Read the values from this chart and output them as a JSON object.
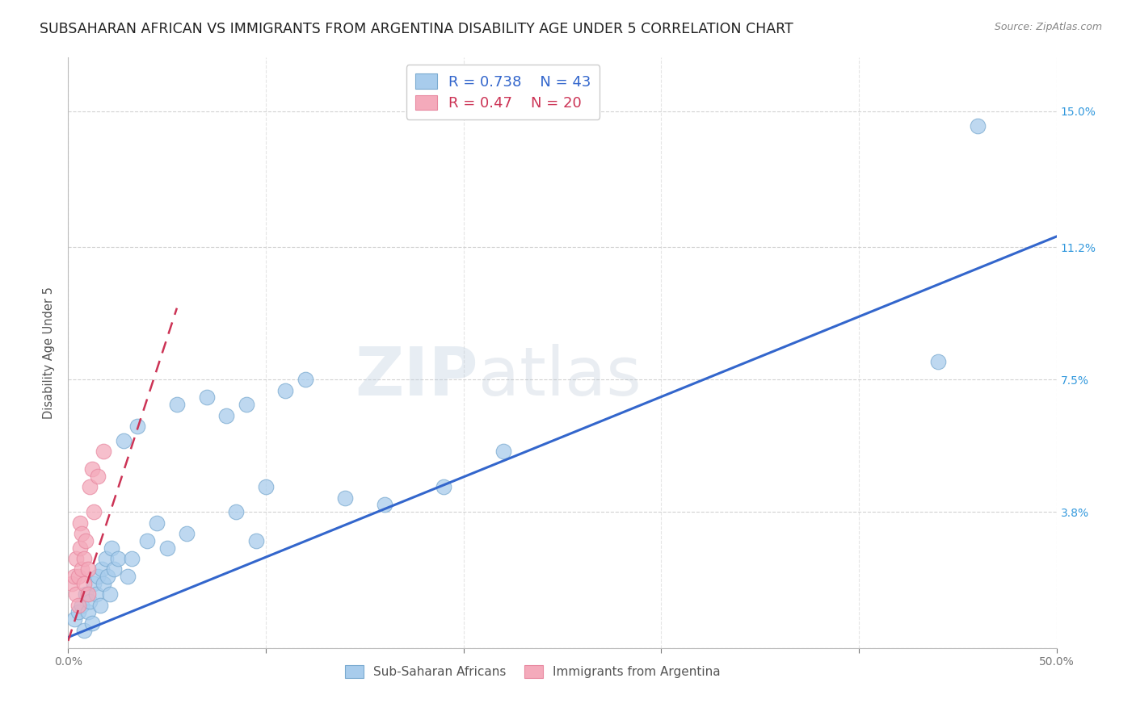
{
  "title": "SUBSAHARAN AFRICAN VS IMMIGRANTS FROM ARGENTINA DISABILITY AGE UNDER 5 CORRELATION CHART",
  "source": "Source: ZipAtlas.com",
  "ylabel": "Disability Age Under 5",
  "xlim": [
    0.0,
    50.0
  ],
  "ylim": [
    0.0,
    16.5
  ],
  "yticks": [
    0.0,
    3.8,
    7.5,
    11.2,
    15.0
  ],
  "ytick_labels": [
    "",
    "3.8%",
    "7.5%",
    "11.2%",
    "15.0%"
  ],
  "xticks": [
    0.0,
    10.0,
    20.0,
    30.0,
    40.0,
    50.0
  ],
  "xtick_labels_shown": [
    "0.0%",
    "",
    "",
    "",
    "",
    "50.0%"
  ],
  "blue_R": 0.738,
  "blue_N": 43,
  "pink_R": 0.47,
  "pink_N": 20,
  "blue_color": "#A8CCEC",
  "blue_edge_color": "#7AAAD0",
  "pink_color": "#F4AABB",
  "pink_edge_color": "#E888A0",
  "blue_line_color": "#3366CC",
  "pink_line_color": "#CC3355",
  "watermark_zip": "ZIP",
  "watermark_atlas": "atlas",
  "blue_scatter_x": [
    0.3,
    0.5,
    0.7,
    0.8,
    0.9,
    1.0,
    1.1,
    1.2,
    1.3,
    1.4,
    1.5,
    1.6,
    1.7,
    1.8,
    1.9,
    2.0,
    2.1,
    2.2,
    2.3,
    2.5,
    2.8,
    3.0,
    3.2,
    3.5,
    4.0,
    4.5,
    5.0,
    5.5,
    6.0,
    7.0,
    8.0,
    8.5,
    9.0,
    9.5,
    10.0,
    11.0,
    12.0,
    14.0,
    16.0,
    19.0,
    22.0,
    44.0,
    46.0
  ],
  "blue_scatter_y": [
    0.8,
    1.0,
    1.2,
    0.5,
    1.5,
    1.0,
    1.3,
    0.7,
    1.8,
    1.5,
    2.0,
    1.2,
    2.2,
    1.8,
    2.5,
    2.0,
    1.5,
    2.8,
    2.2,
    2.5,
    5.8,
    2.0,
    2.5,
    6.2,
    3.0,
    3.5,
    2.8,
    6.8,
    3.2,
    7.0,
    6.5,
    3.8,
    6.8,
    3.0,
    4.5,
    7.2,
    7.5,
    4.2,
    4.0,
    4.5,
    5.5,
    8.0,
    14.6
  ],
  "pink_scatter_x": [
    0.2,
    0.3,
    0.4,
    0.4,
    0.5,
    0.5,
    0.6,
    0.6,
    0.7,
    0.7,
    0.8,
    0.8,
    0.9,
    1.0,
    1.0,
    1.1,
    1.2,
    1.3,
    1.5,
    1.8
  ],
  "pink_scatter_y": [
    1.8,
    2.0,
    1.5,
    2.5,
    1.2,
    2.0,
    2.8,
    3.5,
    2.2,
    3.2,
    1.8,
    2.5,
    3.0,
    1.5,
    2.2,
    4.5,
    5.0,
    3.8,
    4.8,
    5.5
  ],
  "blue_line_x": [
    0.0,
    50.0
  ],
  "blue_line_y": [
    0.3,
    11.5
  ],
  "pink_line_x": [
    0.0,
    5.5
  ],
  "pink_line_y": [
    0.2,
    9.5
  ],
  "background_color": "#FFFFFF",
  "grid_color": "#CCCCCC",
  "title_fontsize": 12.5,
  "axis_label_fontsize": 10.5,
  "tick_fontsize": 10,
  "legend_fontsize": 13
}
